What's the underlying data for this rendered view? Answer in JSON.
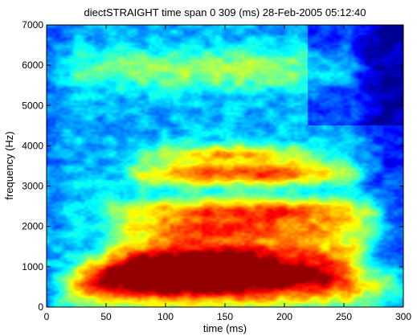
{
  "chart_data": {
    "type": "heatmap",
    "title": "diectSTRAIGHT time span 0 309 (ms) 28-Feb-2005 05:12:40",
    "xlabel": "time (ms)",
    "ylabel": "frequency (Hz)",
    "xlim": [
      0,
      300
    ],
    "ylim": [
      0,
      7000
    ],
    "x_ticks": [
      0,
      50,
      100,
      150,
      200,
      250,
      300
    ],
    "y_ticks": [
      0,
      1000,
      2000,
      3000,
      4000,
      5000,
      6000,
      7000
    ],
    "colormap": "jet",
    "colors": {
      "background": "#ffffff",
      "axis": "#000000"
    },
    "bands": [
      {
        "t_start": 25,
        "t_peak": 100,
        "t_end": 290,
        "f_center": 500,
        "f_width": 450,
        "peak": 0.95
      },
      {
        "t_start": 40,
        "t_peak": 95,
        "t_end": 240,
        "f_center": 850,
        "f_width": 350,
        "peak": 1.0
      },
      {
        "t_start": 60,
        "t_peak": 120,
        "t_end": 260,
        "f_center": 1300,
        "f_width": 350,
        "peak": 0.9
      },
      {
        "t_start": 70,
        "t_peak": 150,
        "t_end": 270,
        "f_center": 1900,
        "f_width": 350,
        "peak": 0.8
      },
      {
        "t_start": 60,
        "t_peak": 180,
        "t_end": 275,
        "f_center": 2400,
        "f_width": 300,
        "peak": 0.82
      },
      {
        "t_start": 80,
        "t_peak": 160,
        "t_end": 250,
        "f_center": 3300,
        "f_width": 300,
        "peak": 0.88
      },
      {
        "t_start": 90,
        "t_peak": 155,
        "t_end": 220,
        "f_center": 3800,
        "f_width": 250,
        "peak": 0.65
      },
      {
        "t_start": 20,
        "t_peak": 150,
        "t_end": 250,
        "f_center": 5900,
        "f_width": 500,
        "peak": 0.45
      }
    ]
  }
}
